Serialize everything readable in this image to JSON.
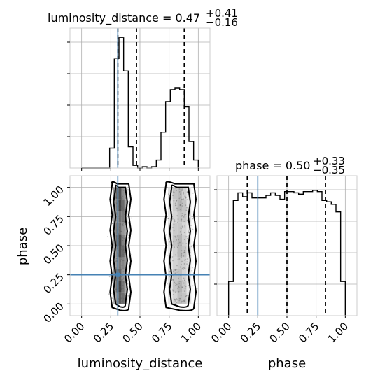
{
  "chart_data": [
    {
      "type": "histogram",
      "panel": "luminosity_distance-marginal",
      "title": {
        "name": "luminosity_distance",
        "median": "0.47",
        "plus": "+0.41",
        "minus": "−0.16"
      },
      "x_range": [
        -0.1,
        1.1
      ],
      "bin_edges": [
        0.0,
        0.04,
        0.08,
        0.12,
        0.16,
        0.2,
        0.24,
        0.28,
        0.32,
        0.36,
        0.4,
        0.44,
        0.48,
        0.52,
        0.56,
        0.6,
        0.64,
        0.68,
        0.72,
        0.76,
        0.8,
        0.84,
        0.88,
        0.92,
        0.96,
        1.0
      ],
      "counts": [
        0,
        0,
        0,
        0,
        0,
        0,
        0.15,
        0.82,
        0.98,
        0.73,
        0.16,
        0.02,
        0.0,
        0.01,
        0.0,
        0.01,
        0.06,
        0.27,
        0.5,
        0.59,
        0.6,
        0.59,
        0.46,
        0.2,
        0.06
      ],
      "quantile_lines": [
        0.31,
        0.47,
        0.88
      ],
      "truth_x": 0.31,
      "grid": true
    },
    {
      "type": "scatter",
      "panel": "luminosity_distance-vs-phase",
      "x_range": [
        -0.1,
        1.1
      ],
      "y_range": [
        -0.1,
        1.1
      ],
      "x_ticks": [
        "0.00",
        "0.25",
        "0.50",
        "0.75",
        "1.00"
      ],
      "y_ticks": [
        "0.00",
        "0.25",
        "0.50",
        "0.75",
        "1.00"
      ],
      "xlabel": "luminosity_distance",
      "ylabel": "phase",
      "truth": {
        "x": 0.31,
        "y": 0.25
      },
      "clusters": [
        {
          "x_center": 0.33,
          "x_spread": 0.05,
          "y_range": [
            0.0,
            1.0
          ]
        },
        {
          "x_center": 0.84,
          "x_spread": 0.08,
          "y_range": [
            0.0,
            1.0
          ]
        }
      ],
      "grid": true
    },
    {
      "type": "histogram",
      "panel": "phase-marginal",
      "title": {
        "name": "phase",
        "median": "0.50",
        "plus": "+0.33",
        "minus": "−0.35"
      },
      "x_range": [
        -0.1,
        1.1
      ],
      "x_ticks": [
        "0.00",
        "0.25",
        "0.50",
        "0.75",
        "1.00"
      ],
      "xlabel": "phase",
      "bin_edges": [
        0.0,
        0.04,
        0.08,
        0.12,
        0.16,
        0.2,
        0.24,
        0.28,
        0.32,
        0.36,
        0.4,
        0.44,
        0.48,
        0.52,
        0.56,
        0.6,
        0.64,
        0.68,
        0.72,
        0.76,
        0.8,
        0.84,
        0.88,
        0.92,
        0.96,
        1.0
      ],
      "counts": [
        0.27,
        0.91,
        0.97,
        0.94,
        0.97,
        0.93,
        0.93,
        0.93,
        0.95,
        0.97,
        0.95,
        0.92,
        0.98,
        0.98,
        0.97,
        0.96,
        0.98,
        0.98,
        0.99,
        0.98,
        0.91,
        0.9,
        0.88,
        0.82,
        0.27
      ],
      "quantile_lines": [
        0.16,
        0.5,
        0.83
      ],
      "truth_x": 0.25,
      "grid": true
    }
  ],
  "colors": {
    "truth": "#4682b4",
    "line": "#000000",
    "grid": "#b0b0b0"
  }
}
